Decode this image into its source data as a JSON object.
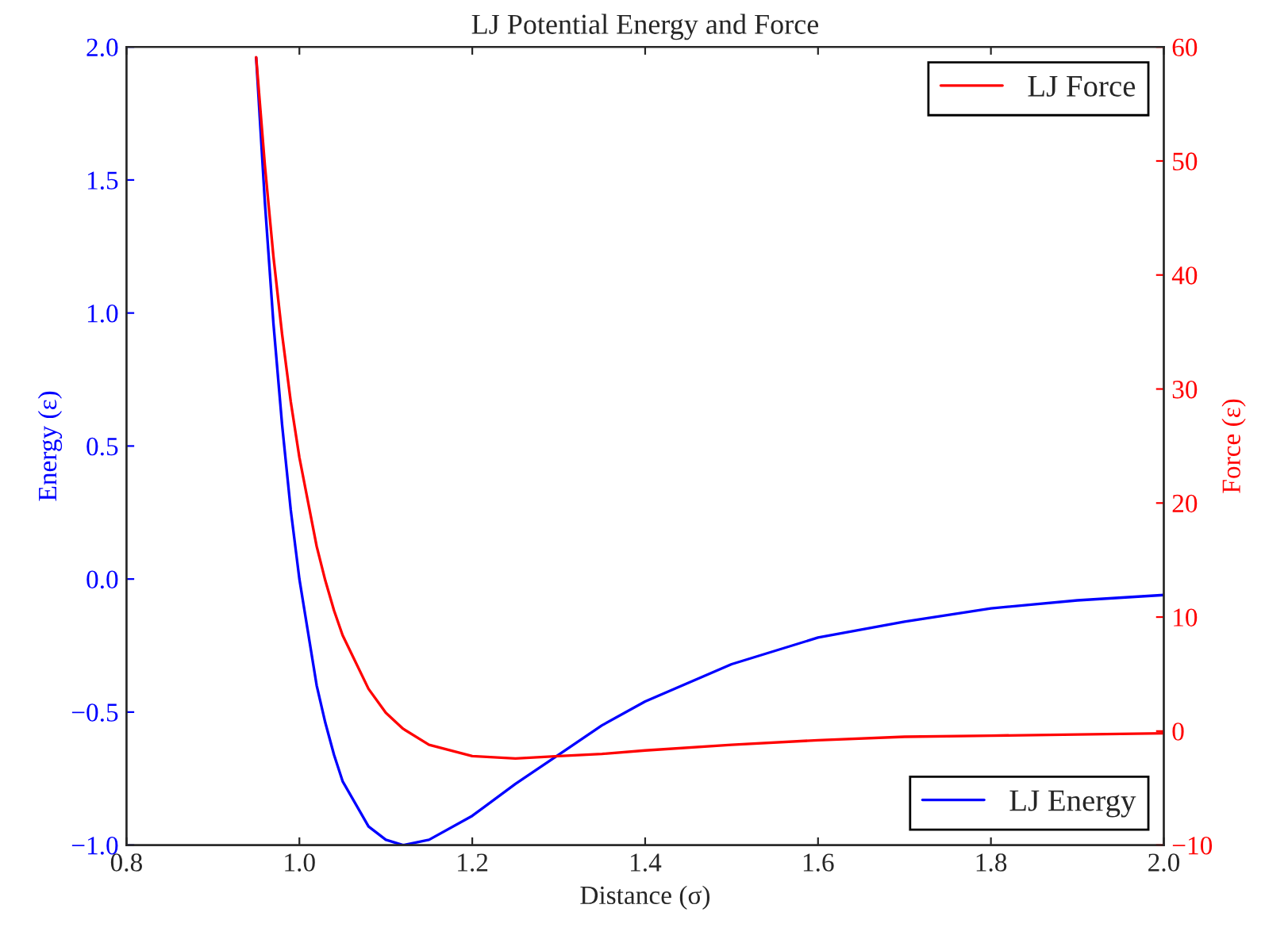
{
  "chart_data": {
    "type": "line",
    "title": "LJ Potential Energy and Force",
    "xlabel": "Distance (σ)",
    "ylabel": "Energy (ε)",
    "y2label": "Force (ε)",
    "xlim": [
      0.8,
      2.0
    ],
    "xticks": [
      {
        "value": 0.8,
        "label": "0.8"
      },
      {
        "value": 1.0,
        "label": "1.0"
      },
      {
        "value": 1.2,
        "label": "1.2"
      },
      {
        "value": 1.4,
        "label": "1.4"
      },
      {
        "value": 1.6,
        "label": "1.6"
      },
      {
        "value": 1.8,
        "label": "1.8"
      },
      {
        "value": 2.0,
        "label": "2.0"
      }
    ],
    "ylim": [
      -1.0,
      2.0
    ],
    "yticks": [
      {
        "value": -1.0,
        "label": "−1.0"
      },
      {
        "value": -0.5,
        "label": "−0.5"
      },
      {
        "value": 0.0,
        "label": "0.0"
      },
      {
        "value": 0.5,
        "label": "0.5"
      },
      {
        "value": 1.0,
        "label": "1.0"
      },
      {
        "value": 1.5,
        "label": "1.5"
      },
      {
        "value": 2.0,
        "label": "2.0"
      }
    ],
    "y2lim": [
      -10,
      60
    ],
    "y2ticks": [
      {
        "value": -10,
        "label": "−10"
      },
      0,
      10,
      20,
      30,
      40,
      50,
      60
    ],
    "grid": false,
    "legend": "right",
    "x": [
      0.95,
      0.96,
      0.97,
      0.98,
      0.99,
      1.0,
      1.02,
      1.03,
      1.04,
      1.05,
      1.08,
      1.1,
      1.12,
      1.15,
      1.2,
      1.25,
      1.3,
      1.35,
      1.4,
      1.5,
      1.6,
      1.7,
      1.8,
      1.9,
      2.0
    ],
    "series": [
      {
        "name": "LJ Energy",
        "color": "#0000ff",
        "values": [
          1.96,
          1.42,
          0.96,
          0.58,
          0.26,
          0.0,
          -0.4,
          -0.54,
          -0.66,
          -0.76,
          -0.93,
          -0.98,
          -1.0,
          -0.98,
          -0.89,
          -0.77,
          -0.66,
          -0.55,
          -0.46,
          -0.32,
          -0.22,
          -0.16,
          -0.11,
          -0.08,
          -0.06
        ]
      },
      {
        "name": "LJ Force",
        "color": "#ff0000",
        "axis": "y2",
        "values": [
          59.1,
          49.7,
          41.6,
          34.8,
          28.9,
          24.0,
          16.2,
          13.2,
          10.6,
          8.4,
          3.7,
          1.6,
          0.2,
          -1.2,
          -2.2,
          -2.4,
          -2.2,
          -2.0,
          -1.7,
          -1.2,
          -0.8,
          -0.5,
          -0.4,
          -0.3,
          -0.2
        ]
      }
    ]
  }
}
